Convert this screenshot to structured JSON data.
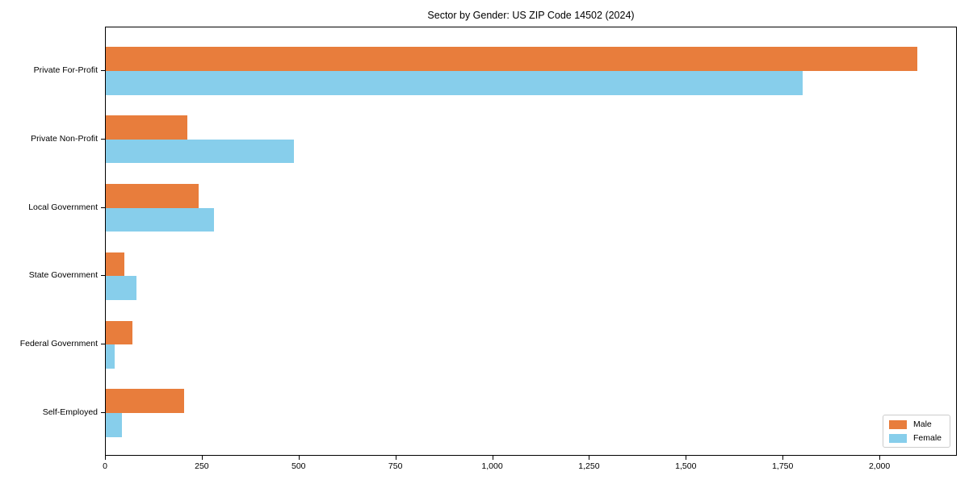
{
  "chart_data": {
    "type": "bar",
    "orientation": "horizontal",
    "title": "Sector by Gender: US ZIP Code 14502 (2024)",
    "categories": [
      "Private For-Profit",
      "Private Non-Profit",
      "Local Government",
      "State Government",
      "Federal Government",
      "Self-Employed"
    ],
    "series": [
      {
        "name": "Male",
        "color": "#E87D3C",
        "values": [
          2095,
          210,
          240,
          48,
          68,
          202
        ]
      },
      {
        "name": "Female",
        "color": "#87CEEB",
        "values": [
          1800,
          485,
          280,
          80,
          22,
          42
        ]
      }
    ],
    "xlabel": "",
    "ylabel": "",
    "xlim": [
      0,
      2200
    ],
    "xticks": {
      "values": [
        0,
        250,
        500,
        750,
        1000,
        1250,
        1500,
        1750,
        2000
      ],
      "labels": [
        "0",
        "250",
        "500",
        "750",
        "1,000",
        "1,250",
        "1,500",
        "1,750",
        "2,000"
      ]
    },
    "grid": false,
    "legend_position": "lower right"
  }
}
